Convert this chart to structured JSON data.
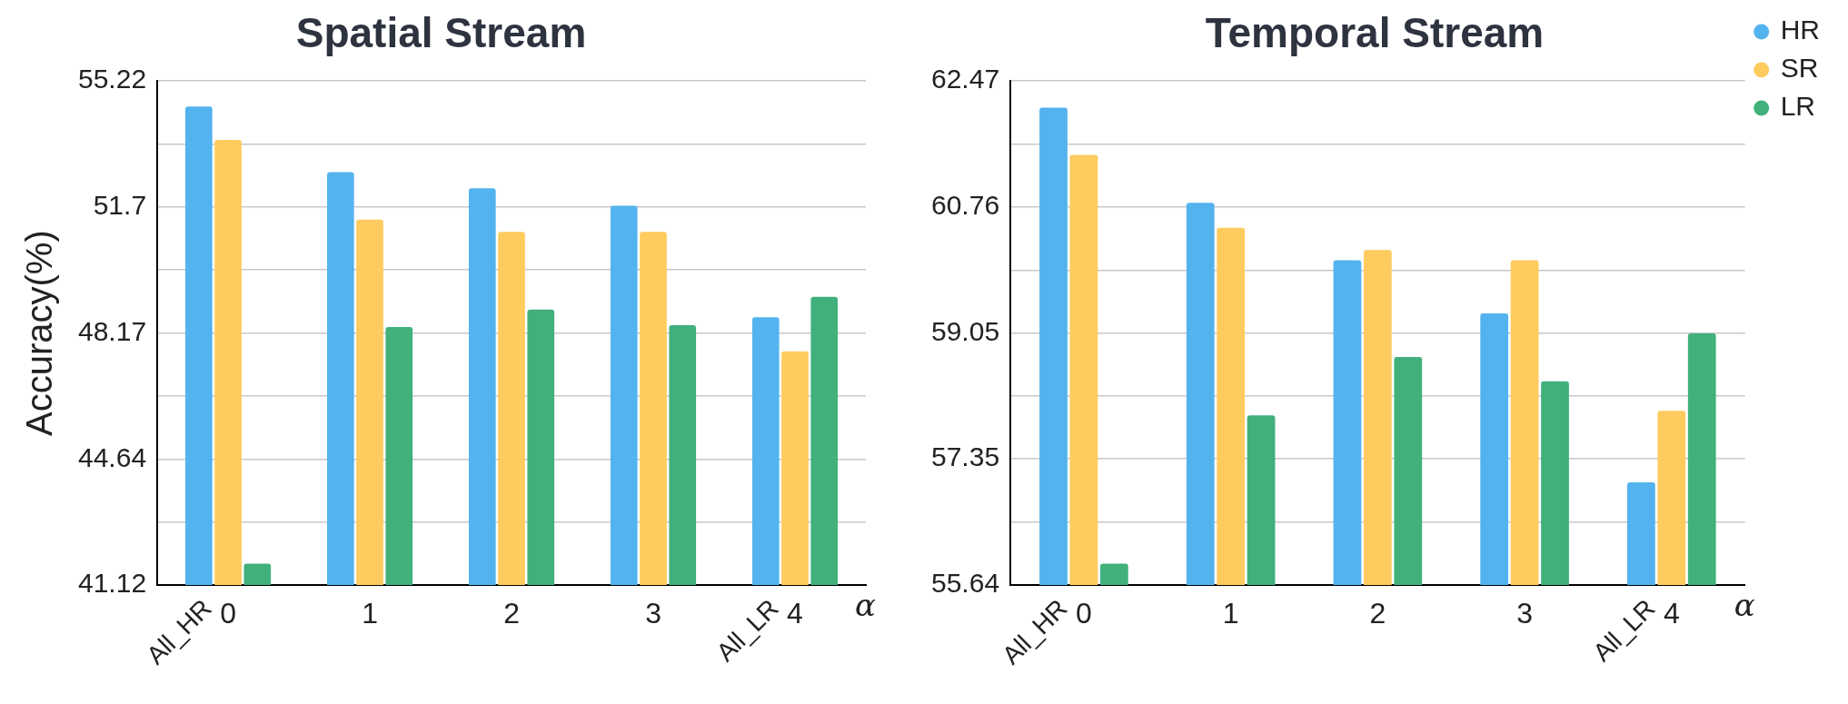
{
  "chart_data": [
    {
      "type": "bar",
      "title": "Spatial Stream",
      "xlabel": "α",
      "ylabel": "Accuracy(%)",
      "categories": [
        "0",
        "1",
        "2",
        "3",
        "4"
      ],
      "series": [
        {
          "color": "#53b3ef",
          "values": [
            54.51,
            52.67,
            52.22,
            51.73,
            48.61
          ]
        },
        {
          "color": "#fecb5e",
          "values": [
            53.57,
            51.34,
            51.0,
            51.0,
            47.66
          ]
        },
        {
          "color": "#41b07b",
          "values": [
            41.72,
            48.34,
            48.83,
            48.39,
            49.18
          ]
        }
      ],
      "ylim": [
        41.12,
        55.22
      ],
      "yticks": [
        41.12,
        {
          "value": 42.88,
          "label": null
        },
        44.64,
        {
          "value": 46.405,
          "label": null
        },
        48.17,
        {
          "value": 49.935,
          "label": null
        },
        51.7,
        {
          "value": 53.46,
          "label": null
        },
        55.22
      ],
      "grid": "y",
      "legend": false,
      "annotations": [
        "All_HR",
        "All_LR"
      ]
    },
    {
      "type": "bar",
      "title": "Temporal Stream",
      "xlabel": "α",
      "categories": [
        "0",
        "1",
        "2",
        "3",
        "4"
      ],
      "series": [
        {
          "name": "HR",
          "color": "#53b3ef",
          "values": [
            62.11,
            60.82,
            60.04,
            59.32,
            57.03
          ]
        },
        {
          "name": "SR",
          "color": "#fecb5e",
          "values": [
            61.47,
            60.48,
            60.18,
            60.04,
            58.0
          ]
        },
        {
          "name": "LR",
          "color": "#41b07b",
          "values": [
            55.93,
            57.94,
            58.73,
            58.4,
            59.05
          ]
        }
      ],
      "ylim": [
        55.64,
        62.47
      ],
      "yticks": [
        55.64,
        {
          "value": 56.495,
          "label": null
        },
        57.35,
        {
          "value": 58.2,
          "label": null
        },
        59.05,
        {
          "value": 59.905,
          "label": null
        },
        60.76,
        {
          "value": 61.615,
          "label": null
        },
        62.47
      ],
      "grid": "y",
      "legend": "top right",
      "annotations": [
        "All_HR",
        "All_LR"
      ]
    }
  ]
}
